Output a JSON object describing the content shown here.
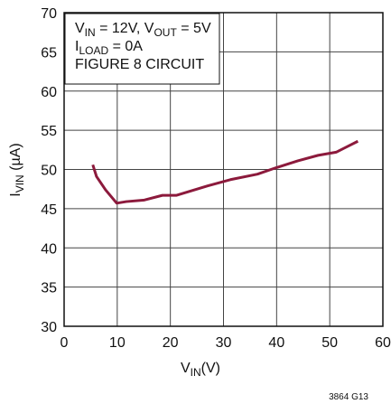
{
  "chart_data": {
    "type": "line",
    "annotation": [
      [
        "V",
        "IN",
        " = 12V, V",
        "OUT",
        " = 5V"
      ],
      [
        "I",
        "LOAD",
        " = 0A"
      ],
      [
        "FIGURE 8 CIRCUIT"
      ]
    ],
    "xlabel": [
      "V",
      "IN",
      "(V)"
    ],
    "ylabel": [
      "I",
      "VIN",
      " (µA)"
    ],
    "footnote": "3864 G13",
    "x": [
      5.4,
      6.1,
      7.8,
      9.9,
      11.7,
      15.1,
      18.5,
      21.1,
      27,
      31.3,
      36.4,
      39.8,
      44,
      47.8,
      51.2,
      55.3
    ],
    "series": [
      {
        "color": "#8c1a3c",
        "values": [
          50.6,
          49.1,
          47.4,
          45.7,
          45.9,
          46.1,
          46.7,
          46.7,
          47.9,
          48.7,
          49.4,
          50.2,
          51.1,
          51.8,
          52.2,
          53.6
        ]
      }
    ],
    "xlim": [
      0,
      60
    ],
    "xticks": [
      0,
      10,
      20,
      30,
      40,
      50,
      60
    ],
    "ylim": [
      30,
      70
    ],
    "yticks": [
      30,
      35,
      40,
      45,
      50,
      55,
      60,
      65,
      70
    ],
    "grid": true
  }
}
